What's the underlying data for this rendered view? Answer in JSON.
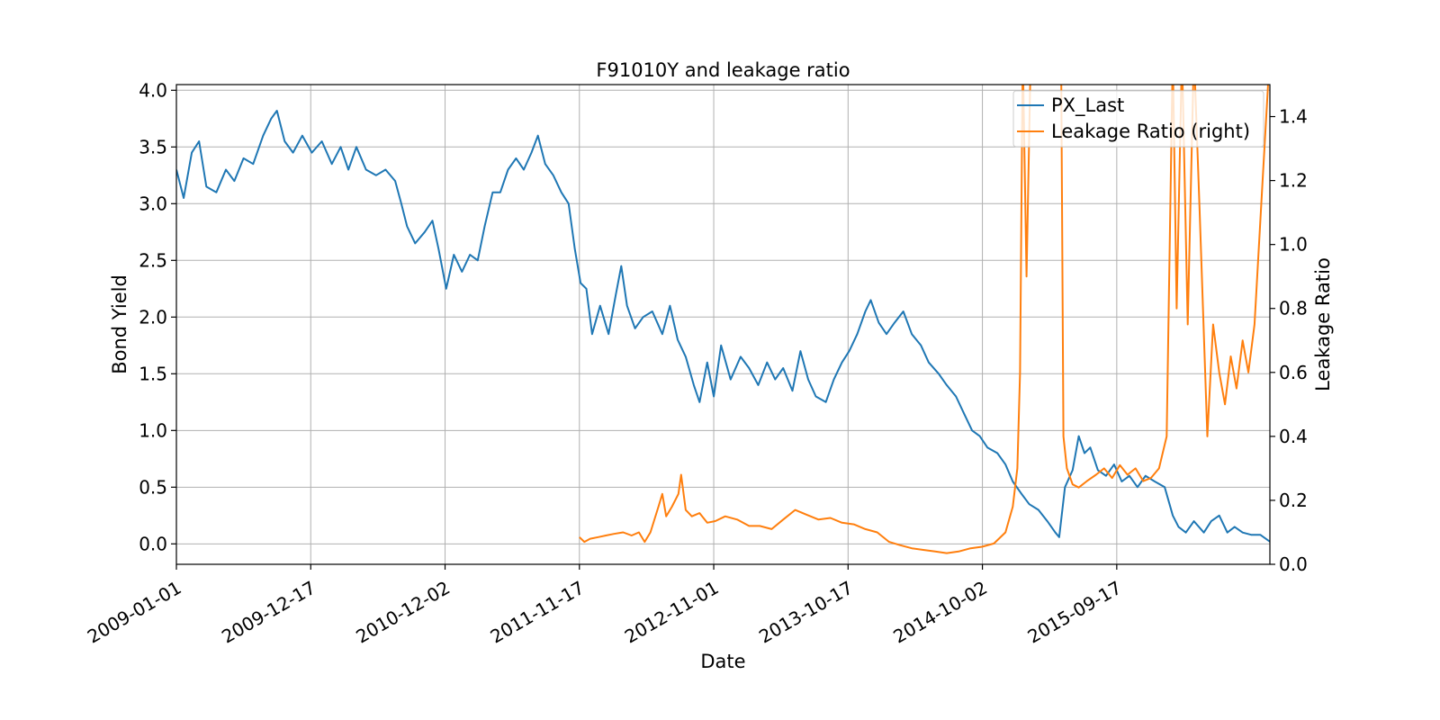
{
  "chart_data": {
    "type": "line",
    "title": "F91010Y and leakage ratio",
    "xlabel": "Date",
    "ylabel": "Bond Yield",
    "ylabel_right": "Leakage Ratio",
    "grid": true,
    "legend_position": "top-right",
    "x_range": [
      "2009-01-01",
      "2016-10-20"
    ],
    "x_ticks": [
      "2009-01-01",
      "2009-12-17",
      "2010-12-02",
      "2011-11-17",
      "2012-11-01",
      "2013-10-17",
      "2014-10-02",
      "2015-09-17"
    ],
    "ylim": [
      -0.18,
      4.05
    ],
    "yticks": [
      "0.0",
      "0.5",
      "1.0",
      "1.5",
      "2.0",
      "2.5",
      "3.0",
      "3.5",
      "4.0"
    ],
    "ylim_right": [
      0.0,
      1.5
    ],
    "yticks_right": [
      "0.0",
      "0.2",
      "0.4",
      "0.6",
      "0.8",
      "1.0",
      "1.2",
      "1.4"
    ],
    "series": [
      {
        "name": "PX_Last",
        "axis": "left",
        "color": "#1f77b4",
        "points": [
          [
            "2009-01-01",
            3.3
          ],
          [
            "2009-01-20",
            3.05
          ],
          [
            "2009-02-10",
            3.45
          ],
          [
            "2009-03-01",
            3.55
          ],
          [
            "2009-03-20",
            3.15
          ],
          [
            "2009-04-15",
            3.1
          ],
          [
            "2009-05-10",
            3.3
          ],
          [
            "2009-06-01",
            3.2
          ],
          [
            "2009-06-25",
            3.4
          ],
          [
            "2009-07-20",
            3.35
          ],
          [
            "2009-08-15",
            3.6
          ],
          [
            "2009-09-05",
            3.75
          ],
          [
            "2009-09-20",
            3.82
          ],
          [
            "2009-10-10",
            3.55
          ],
          [
            "2009-11-01",
            3.45
          ],
          [
            "2009-11-25",
            3.6
          ],
          [
            "2009-12-20",
            3.45
          ],
          [
            "2010-01-15",
            3.55
          ],
          [
            "2010-02-10",
            3.35
          ],
          [
            "2010-03-05",
            3.5
          ],
          [
            "2010-03-25",
            3.3
          ],
          [
            "2010-04-15",
            3.5
          ],
          [
            "2010-05-10",
            3.3
          ],
          [
            "2010-06-05",
            3.25
          ],
          [
            "2010-06-30",
            3.3
          ],
          [
            "2010-07-25",
            3.2
          ],
          [
            "2010-08-10",
            3.0
          ],
          [
            "2010-08-25",
            2.8
          ],
          [
            "2010-09-15",
            2.65
          ],
          [
            "2010-10-10",
            2.75
          ],
          [
            "2010-10-30",
            2.85
          ],
          [
            "2010-11-15",
            2.6
          ],
          [
            "2010-12-05",
            2.25
          ],
          [
            "2010-12-25",
            2.55
          ],
          [
            "2011-01-15",
            2.4
          ],
          [
            "2011-02-05",
            2.55
          ],
          [
            "2011-02-25",
            2.5
          ],
          [
            "2011-03-15",
            2.8
          ],
          [
            "2011-04-05",
            3.1
          ],
          [
            "2011-04-25",
            3.1
          ],
          [
            "2011-05-15",
            3.3
          ],
          [
            "2011-06-05",
            3.4
          ],
          [
            "2011-06-25",
            3.3
          ],
          [
            "2011-07-15",
            3.45
          ],
          [
            "2011-08-01",
            3.6
          ],
          [
            "2011-08-20",
            3.35
          ],
          [
            "2011-09-10",
            3.25
          ],
          [
            "2011-10-01",
            3.1
          ],
          [
            "2011-10-20",
            3.0
          ],
          [
            "2011-11-05",
            2.6
          ],
          [
            "2011-11-20",
            2.3
          ],
          [
            "2011-12-05",
            2.25
          ],
          [
            "2011-12-20",
            1.85
          ],
          [
            "2012-01-10",
            2.1
          ],
          [
            "2012-02-01",
            1.85
          ],
          [
            "2012-02-20",
            2.2
          ],
          [
            "2012-03-05",
            2.45
          ],
          [
            "2012-03-20",
            2.1
          ],
          [
            "2012-04-10",
            1.9
          ],
          [
            "2012-05-01",
            2.0
          ],
          [
            "2012-05-25",
            2.05
          ],
          [
            "2012-06-20",
            1.85
          ],
          [
            "2012-07-10",
            2.1
          ],
          [
            "2012-07-30",
            1.8
          ],
          [
            "2012-08-20",
            1.65
          ],
          [
            "2012-09-10",
            1.4
          ],
          [
            "2012-09-25",
            1.25
          ],
          [
            "2012-10-15",
            1.6
          ],
          [
            "2012-11-01",
            1.3
          ],
          [
            "2012-11-20",
            1.75
          ],
          [
            "2012-12-15",
            1.45
          ],
          [
            "2013-01-10",
            1.65
          ],
          [
            "2013-02-01",
            1.55
          ],
          [
            "2013-02-25",
            1.4
          ],
          [
            "2013-03-20",
            1.6
          ],
          [
            "2013-04-10",
            1.45
          ],
          [
            "2013-05-01",
            1.55
          ],
          [
            "2013-05-25",
            1.35
          ],
          [
            "2013-06-15",
            1.7
          ],
          [
            "2013-07-05",
            1.45
          ],
          [
            "2013-07-25",
            1.3
          ],
          [
            "2013-08-20",
            1.25
          ],
          [
            "2013-09-10",
            1.45
          ],
          [
            "2013-10-01",
            1.6
          ],
          [
            "2013-10-20",
            1.7
          ],
          [
            "2013-11-10",
            1.85
          ],
          [
            "2013-12-01",
            2.05
          ],
          [
            "2013-12-15",
            2.15
          ],
          [
            "2014-01-05",
            1.95
          ],
          [
            "2014-01-25",
            1.85
          ],
          [
            "2014-02-15",
            1.95
          ],
          [
            "2014-03-10",
            2.05
          ],
          [
            "2014-04-01",
            1.85
          ],
          [
            "2014-04-25",
            1.75
          ],
          [
            "2014-05-15",
            1.6
          ],
          [
            "2014-06-10",
            1.5
          ],
          [
            "2014-07-01",
            1.4
          ],
          [
            "2014-07-25",
            1.3
          ],
          [
            "2014-08-15",
            1.15
          ],
          [
            "2014-09-05",
            1.0
          ],
          [
            "2014-09-25",
            0.95
          ],
          [
            "2014-10-15",
            0.85
          ],
          [
            "2014-11-10",
            0.8
          ],
          [
            "2014-12-01",
            0.7
          ],
          [
            "2014-12-20",
            0.55
          ],
          [
            "2015-01-10",
            0.45
          ],
          [
            "2015-02-01",
            0.35
          ],
          [
            "2015-02-25",
            0.3
          ],
          [
            "2015-03-20",
            0.2
          ],
          [
            "2015-04-10",
            0.1
          ],
          [
            "2015-04-20",
            0.06
          ],
          [
            "2015-05-05",
            0.5
          ],
          [
            "2015-05-25",
            0.65
          ],
          [
            "2015-06-10",
            0.95
          ],
          [
            "2015-06-25",
            0.8
          ],
          [
            "2015-07-10",
            0.85
          ],
          [
            "2015-07-30",
            0.65
          ],
          [
            "2015-08-20",
            0.6
          ],
          [
            "2015-09-10",
            0.7
          ],
          [
            "2015-09-30",
            0.55
          ],
          [
            "2015-10-20",
            0.6
          ],
          [
            "2015-11-10",
            0.5
          ],
          [
            "2015-12-01",
            0.6
          ],
          [
            "2015-12-25",
            0.55
          ],
          [
            "2016-01-20",
            0.5
          ],
          [
            "2016-02-10",
            0.25
          ],
          [
            "2016-02-25",
            0.15
          ],
          [
            "2016-03-15",
            0.1
          ],
          [
            "2016-04-05",
            0.2
          ],
          [
            "2016-05-01",
            0.1
          ],
          [
            "2016-05-20",
            0.2
          ],
          [
            "2016-06-10",
            0.25
          ],
          [
            "2016-07-01",
            0.1
          ],
          [
            "2016-07-20",
            0.15
          ],
          [
            "2016-08-10",
            0.1
          ],
          [
            "2016-09-01",
            0.08
          ],
          [
            "2016-09-25",
            0.08
          ],
          [
            "2016-10-20",
            0.02
          ]
        ]
      },
      {
        "name": "Leakage Ratio (right)",
        "axis": "right",
        "color": "#ff7f0e",
        "points": [
          [
            "2011-11-17",
            0.085
          ],
          [
            "2011-11-30",
            0.07
          ],
          [
            "2011-12-15",
            0.08
          ],
          [
            "2012-01-05",
            0.085
          ],
          [
            "2012-01-25",
            0.09
          ],
          [
            "2012-02-15",
            0.095
          ],
          [
            "2012-03-10",
            0.1
          ],
          [
            "2012-04-01",
            0.09
          ],
          [
            "2012-04-20",
            0.1
          ],
          [
            "2012-05-05",
            0.07
          ],
          [
            "2012-05-20",
            0.1
          ],
          [
            "2012-06-10",
            0.18
          ],
          [
            "2012-06-20",
            0.22
          ],
          [
            "2012-06-30",
            0.15
          ],
          [
            "2012-07-15",
            0.18
          ],
          [
            "2012-08-01",
            0.22
          ],
          [
            "2012-08-08",
            0.28
          ],
          [
            "2012-08-20",
            0.17
          ],
          [
            "2012-09-05",
            0.15
          ],
          [
            "2012-09-25",
            0.16
          ],
          [
            "2012-10-15",
            0.13
          ],
          [
            "2012-11-05",
            0.135
          ],
          [
            "2012-12-01",
            0.15
          ],
          [
            "2013-01-01",
            0.14
          ],
          [
            "2013-02-01",
            0.12
          ],
          [
            "2013-03-01",
            0.12
          ],
          [
            "2013-04-01",
            0.11
          ],
          [
            "2013-05-01",
            0.14
          ],
          [
            "2013-06-01",
            0.17
          ],
          [
            "2013-07-01",
            0.155
          ],
          [
            "2013-08-01",
            0.14
          ],
          [
            "2013-09-01",
            0.145
          ],
          [
            "2013-10-01",
            0.13
          ],
          [
            "2013-11-01",
            0.125
          ],
          [
            "2013-12-01",
            0.11
          ],
          [
            "2014-01-01",
            0.1
          ],
          [
            "2014-02-01",
            0.07
          ],
          [
            "2014-03-01",
            0.06
          ],
          [
            "2014-04-01",
            0.05
          ],
          [
            "2014-05-01",
            0.045
          ],
          [
            "2014-06-01",
            0.04
          ],
          [
            "2014-07-01",
            0.035
          ],
          [
            "2014-08-01",
            0.04
          ],
          [
            "2014-09-01",
            0.05
          ],
          [
            "2014-10-01",
            0.055
          ],
          [
            "2014-11-01",
            0.065
          ],
          [
            "2014-12-01",
            0.1
          ],
          [
            "2014-12-20",
            0.18
          ],
          [
            "2015-01-01",
            0.3
          ],
          [
            "2015-01-08",
            0.6
          ],
          [
            "2015-01-15",
            1.6
          ],
          [
            "2015-01-25",
            0.9
          ],
          [
            "2015-02-05",
            1.6
          ],
          [
            "2015-03-01",
            1.6
          ],
          [
            "2015-04-01",
            1.6
          ],
          [
            "2015-04-25",
            1.6
          ],
          [
            "2015-05-01",
            0.4
          ],
          [
            "2015-05-10",
            0.3
          ],
          [
            "2015-05-25",
            0.25
          ],
          [
            "2015-06-10",
            0.24
          ],
          [
            "2015-07-01",
            0.26
          ],
          [
            "2015-07-25",
            0.28
          ],
          [
            "2015-08-15",
            0.3
          ],
          [
            "2015-09-05",
            0.27
          ],
          [
            "2015-09-25",
            0.31
          ],
          [
            "2015-10-15",
            0.28
          ],
          [
            "2015-11-05",
            0.3
          ],
          [
            "2015-11-25",
            0.26
          ],
          [
            "2015-12-15",
            0.27
          ],
          [
            "2016-01-05",
            0.3
          ],
          [
            "2016-01-25",
            0.4
          ],
          [
            "2016-02-10",
            1.6
          ],
          [
            "2016-02-20",
            0.8
          ],
          [
            "2016-03-05",
            1.6
          ],
          [
            "2016-03-20",
            0.75
          ],
          [
            "2016-04-05",
            1.6
          ],
          [
            "2016-04-20",
            1.1
          ],
          [
            "2016-05-10",
            0.4
          ],
          [
            "2016-05-25",
            0.75
          ],
          [
            "2016-06-10",
            0.6
          ],
          [
            "2016-06-25",
            0.5
          ],
          [
            "2016-07-10",
            0.65
          ],
          [
            "2016-07-25",
            0.55
          ],
          [
            "2016-08-10",
            0.7
          ],
          [
            "2016-08-25",
            0.6
          ],
          [
            "2016-09-10",
            0.75
          ],
          [
            "2016-10-01",
            1.2
          ],
          [
            "2016-10-20",
            1.6
          ]
        ]
      }
    ]
  }
}
